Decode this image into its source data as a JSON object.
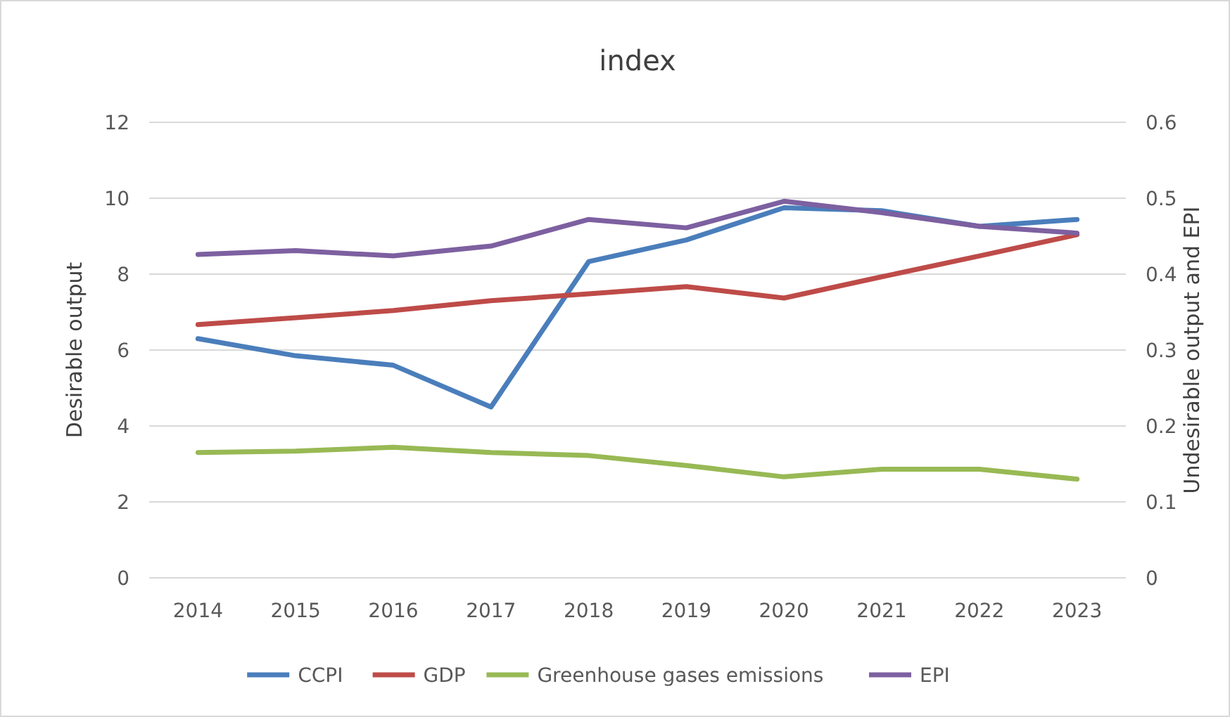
{
  "chart_data": {
    "type": "line",
    "title": "index",
    "ylabel": "Desirable output",
    "y2label": "Undesirable output and EPI",
    "categories": [
      "2014",
      "2015",
      "2016",
      "2017",
      "2018",
      "2019",
      "2020",
      "2021",
      "2022",
      "2023"
    ],
    "ylim": [
      0,
      12
    ],
    "yticks": [
      0,
      2,
      4,
      6,
      8,
      10,
      12
    ],
    "y2lim": [
      0,
      0.6
    ],
    "y2ticks": [
      0,
      0.1,
      0.2,
      0.3,
      0.4,
      0.5,
      0.6
    ],
    "grid": "y",
    "legend": "bottom",
    "marker": "none",
    "line_style": "solid",
    "series": [
      {
        "name": "CCPI",
        "color": "#4a7ebb",
        "values": [
          6.3,
          5.85,
          5.6,
          4.5,
          8.33,
          8.9,
          9.75,
          9.67,
          9.26,
          9.44
        ]
      },
      {
        "name": "GDP",
        "color": "#be4b48",
        "values": [
          6.67,
          6.85,
          7.04,
          7.3,
          7.48,
          7.67,
          7.37,
          7.93,
          8.48,
          9.04
        ]
      },
      {
        "name": "Greenhouse gases emissions",
        "color": "#98b954",
        "axis": "y2",
        "values": [
          0.165,
          0.167,
          0.172,
          0.165,
          0.161,
          0.148,
          0.133,
          0.143,
          0.143,
          0.13
        ]
      },
      {
        "name": "EPI",
        "color": "#7d60a0",
        "axis": "y2",
        "values": [
          0.426,
          0.431,
          0.424,
          0.437,
          0.472,
          0.461,
          0.496,
          0.481,
          0.463,
          0.454
        ]
      }
    ]
  }
}
